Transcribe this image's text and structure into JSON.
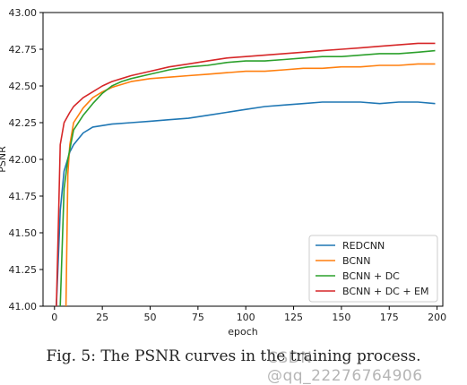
{
  "caption": "Fig. 5: The PSNR curves in the training process.",
  "watermark": "CSDN @qq_22276764906",
  "chart_data": {
    "type": "line",
    "xlabel": "epoch",
    "ylabel": "PSNR",
    "xlim": [
      -6,
      203
    ],
    "ylim": [
      41.0,
      43.0
    ],
    "xticks": [
      0,
      25,
      50,
      75,
      100,
      125,
      150,
      175,
      200
    ],
    "yticks": [
      41.0,
      41.25,
      41.5,
      41.75,
      42.0,
      42.25,
      42.5,
      42.75,
      43.0
    ],
    "ytick_labels": [
      "41.00",
      "41.25",
      "41.50",
      "41.75",
      "42.00",
      "42.25",
      "42.50",
      "42.75",
      "43.00"
    ],
    "grid": false,
    "legend_position": "lower-right",
    "series": [
      {
        "name": "REDCNN",
        "color": "#1f77b4",
        "x": [
          1,
          3,
          5,
          8,
          10,
          15,
          20,
          30,
          40,
          50,
          60,
          70,
          80,
          90,
          100,
          110,
          120,
          130,
          140,
          150,
          160,
          170,
          180,
          190,
          199
        ],
        "y": [
          41.0,
          41.65,
          41.92,
          42.05,
          42.1,
          42.18,
          42.22,
          42.24,
          42.25,
          42.26,
          42.27,
          42.28,
          42.3,
          42.32,
          42.34,
          42.36,
          42.37,
          42.38,
          42.39,
          42.39,
          42.39,
          42.38,
          42.39,
          42.39,
          42.38
        ]
      },
      {
        "name": "BCNN",
        "color": "#ff7f0e",
        "x": [
          6,
          7,
          8,
          10,
          15,
          20,
          25,
          30,
          35,
          40,
          50,
          60,
          70,
          80,
          90,
          100,
          110,
          120,
          130,
          140,
          150,
          160,
          170,
          180,
          190,
          199
        ],
        "y": [
          41.0,
          41.9,
          42.1,
          42.25,
          42.35,
          42.42,
          42.46,
          42.49,
          42.51,
          42.53,
          42.55,
          42.56,
          42.57,
          42.58,
          42.59,
          42.6,
          42.6,
          42.61,
          42.62,
          42.62,
          42.63,
          42.63,
          42.64,
          42.64,
          42.65,
          42.65
        ]
      },
      {
        "name": "BCNN + DC",
        "color": "#2ca02c",
        "x": [
          3,
          5,
          7,
          10,
          15,
          20,
          25,
          30,
          35,
          40,
          50,
          60,
          70,
          80,
          90,
          100,
          110,
          120,
          130,
          140,
          150,
          160,
          170,
          180,
          190,
          199
        ],
        "y": [
          41.0,
          41.8,
          42.0,
          42.2,
          42.3,
          42.38,
          42.45,
          42.5,
          42.53,
          42.55,
          42.58,
          42.61,
          42.63,
          42.64,
          42.66,
          42.67,
          42.67,
          42.68,
          42.69,
          42.7,
          42.7,
          42.71,
          42.72,
          42.72,
          42.73,
          42.74
        ]
      },
      {
        "name": "BCNN + DC + EM",
        "color": "#d62728",
        "x": [
          1,
          2,
          3,
          5,
          8,
          10,
          15,
          20,
          25,
          30,
          35,
          40,
          50,
          60,
          70,
          80,
          90,
          100,
          110,
          120,
          130,
          140,
          150,
          160,
          170,
          180,
          190,
          199
        ],
        "y": [
          41.0,
          41.55,
          42.1,
          42.25,
          42.32,
          42.36,
          42.42,
          42.46,
          42.5,
          42.53,
          42.55,
          42.57,
          42.6,
          42.63,
          42.65,
          42.67,
          42.69,
          42.7,
          42.71,
          42.72,
          42.73,
          42.74,
          42.75,
          42.76,
          42.77,
          42.78,
          42.79,
          42.79
        ]
      }
    ]
  }
}
